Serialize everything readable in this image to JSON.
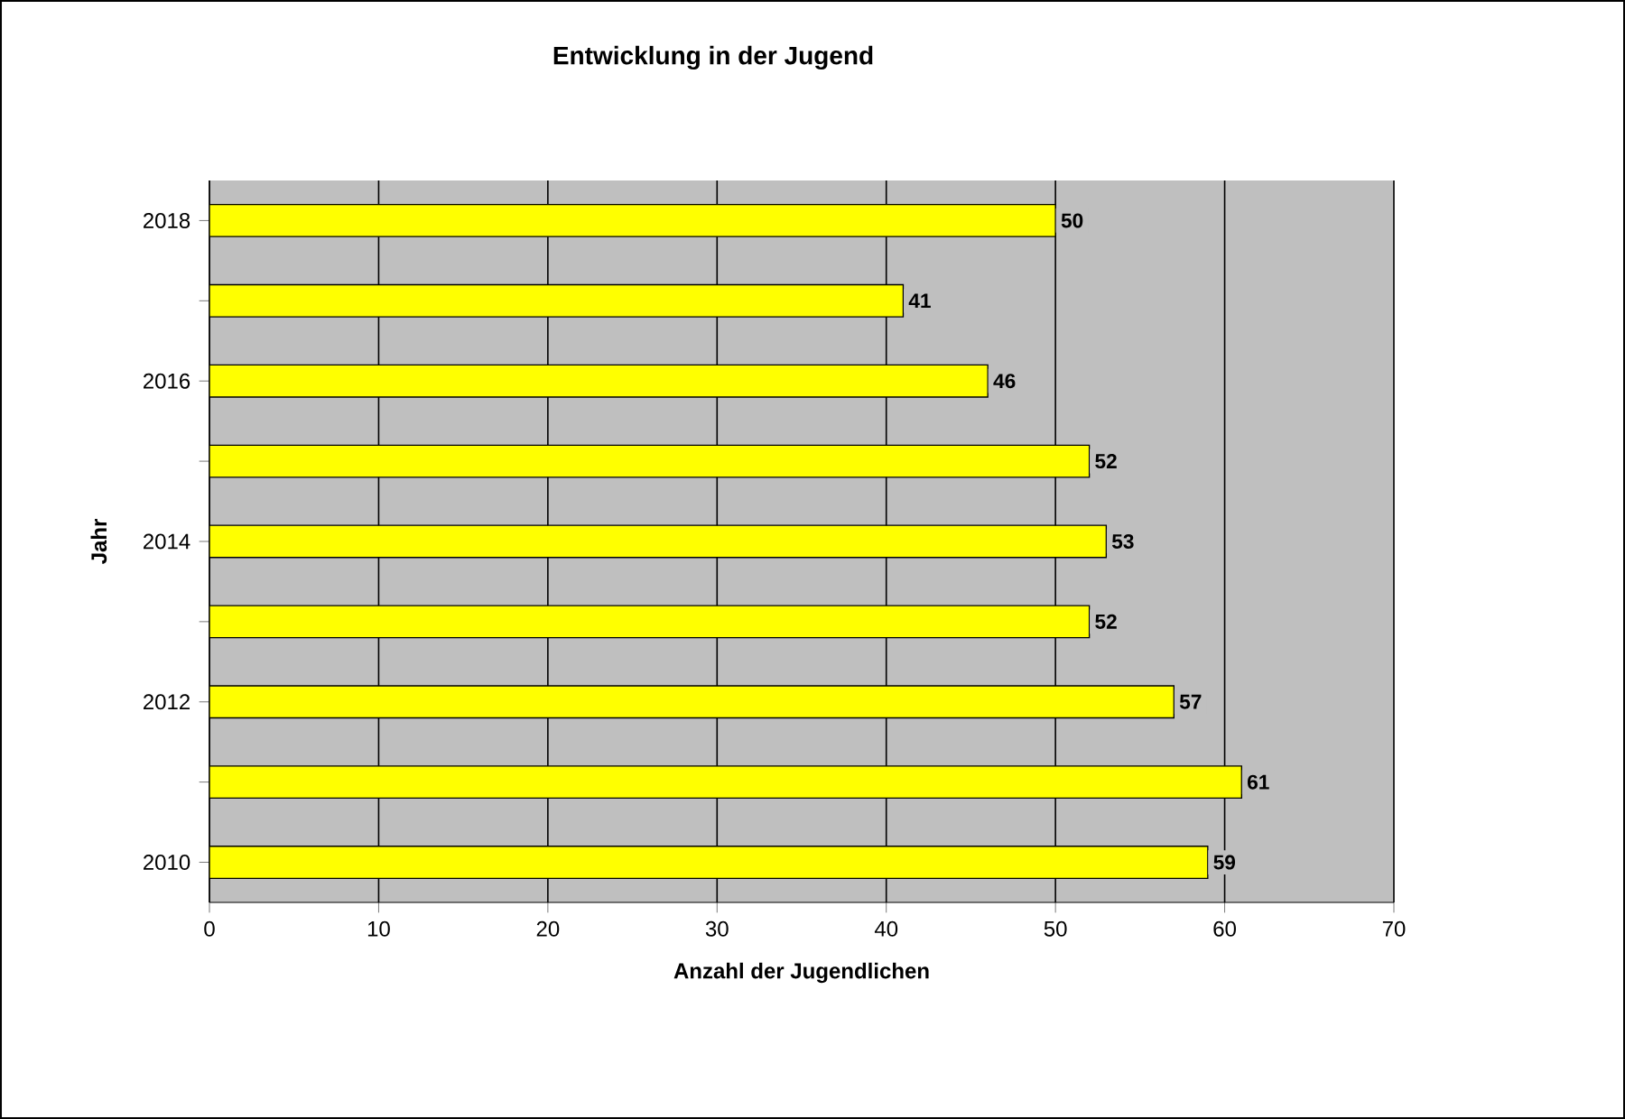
{
  "chart_data": {
    "type": "bar",
    "orientation": "horizontal",
    "title": "Entwicklung in der Jugend",
    "xlabel": "Anzahl der Jugendlichen",
    "ylabel": "Jahr",
    "categories": [
      "2018",
      null,
      "2016",
      null,
      "2014",
      null,
      "2012",
      null,
      "2010"
    ],
    "values": [
      50,
      41,
      46,
      52,
      53,
      52,
      57,
      61,
      59
    ],
    "color": "#ffff00",
    "xlim": [
      0,
      70
    ],
    "xticks": [
      0,
      10,
      20,
      30,
      40,
      50,
      60,
      70
    ],
    "grid": "x",
    "data_labels": true
  }
}
